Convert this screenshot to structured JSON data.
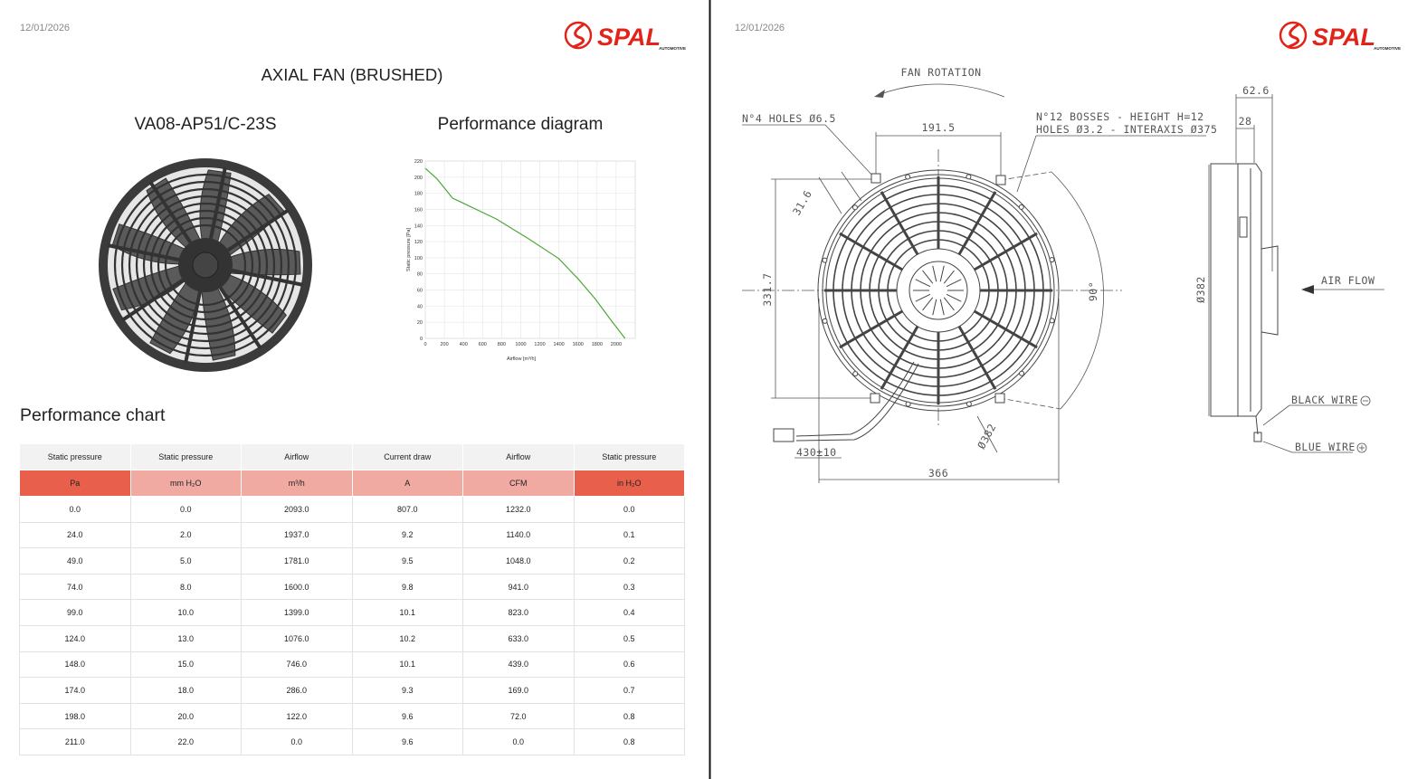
{
  "left": {
    "date": "12/01/2026",
    "logo": "SPAL",
    "logo_sub": "AUTOMOTIVE",
    "title": "AXIAL FAN (BRUSHED)",
    "model": "VA08-AP51/C-23S"
  },
  "chart_data": {
    "type": "line",
    "title": "Performance diagram",
    "x_label": "Airflow [m³/h]",
    "y_label": "Static pressure [Pa]",
    "x": [
      0,
      122,
      286,
      746,
      1076,
      1399,
      1600,
      1781,
      1937,
      2093
    ],
    "values": [
      211,
      198,
      174,
      148,
      124,
      99,
      74,
      49,
      24,
      0
    ],
    "color": "#4ea83a",
    "xlim": [
      0,
      2200
    ],
    "xticks": [
      0,
      200,
      400,
      600,
      800,
      1000,
      1200,
      1400,
      1600,
      1800,
      2000
    ],
    "ylim": [
      0,
      220
    ],
    "yticks": [
      0,
      20,
      40,
      60,
      80,
      100,
      120,
      140,
      160,
      180,
      200,
      220
    ],
    "grid": true
  },
  "table": {
    "title": "Performance chart",
    "header": [
      "Static pressure",
      "Static pressure",
      "Airflow",
      "Current draw",
      "Airflow",
      "Static pressure"
    ],
    "units": [
      "Pa",
      "mm H₂O",
      "m³/h",
      "A",
      "CFM",
      "in H₂O"
    ],
    "rows": [
      [
        "0.0",
        "0.0",
        "2093.0",
        "807.0",
        "1232.0",
        "0.0"
      ],
      [
        "24.0",
        "2.0",
        "1937.0",
        "9.2",
        "1140.0",
        "0.1"
      ],
      [
        "49.0",
        "5.0",
        "1781.0",
        "9.5",
        "1048.0",
        "0.2"
      ],
      [
        "74.0",
        "8.0",
        "1600.0",
        "9.8",
        "941.0",
        "0.3"
      ],
      [
        "99.0",
        "10.0",
        "1399.0",
        "10.1",
        "823.0",
        "0.4"
      ],
      [
        "124.0",
        "13.0",
        "1076.0",
        "10.2",
        "633.0",
        "0.5"
      ],
      [
        "148.0",
        "15.0",
        "746.0",
        "10.1",
        "439.0",
        "0.6"
      ],
      [
        "174.0",
        "18.0",
        "286.0",
        "9.3",
        "169.0",
        "0.7"
      ],
      [
        "198.0",
        "20.0",
        "122.0",
        "9.6",
        "72.0",
        "0.8"
      ],
      [
        "211.0",
        "22.0",
        "0.0",
        "9.6",
        "0.0",
        "0.8"
      ]
    ]
  },
  "right": {
    "date": "12/01/2026",
    "logo": "SPAL",
    "logo_sub": "AUTOMOTIVE",
    "labels": {
      "fan_rotation": "FAN ROTATION",
      "holes": "N°4 HOLES Ø6.5",
      "width_191": "191.5",
      "bosses": "N°12 BOSSES - HEIGHT H=12",
      "bosses_holes": "HOLES Ø3.2 - INTERAXIS Ø375",
      "depth_62": "62.6",
      "depth_28": "28",
      "dim_31": "31.6",
      "height_331": "331.7",
      "angle": "90°",
      "diameter_side": "Ø382",
      "diameter_front": "Ø382",
      "air_flow": "AIR FLOW",
      "black_wire": "BLACK WIRE",
      "blue_wire": "BLUE WIRE",
      "wire_length": "430±10",
      "width_366": "366"
    }
  }
}
